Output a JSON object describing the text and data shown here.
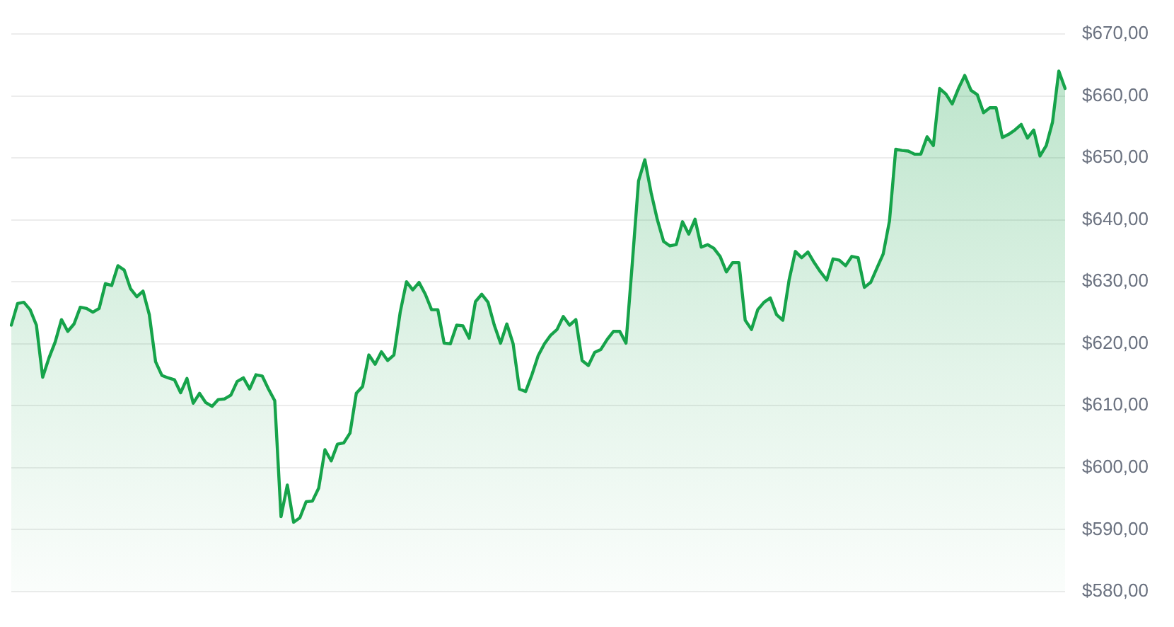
{
  "chart_data": {
    "type": "area",
    "color": "#16a34a",
    "categories": [
      null,
      null,
      null,
      null,
      null,
      null,
      null,
      null,
      null,
      null,
      null,
      null,
      null,
      null,
      null,
      null,
      null,
      null,
      null,
      null,
      null,
      null,
      null,
      null,
      null,
      null,
      null,
      null,
      null,
      null,
      null,
      null,
      null,
      null,
      null,
      null,
      null,
      null,
      null,
      null,
      null,
      null,
      null,
      null,
      null,
      null,
      null,
      null,
      null,
      null,
      null,
      null,
      null,
      null,
      null,
      null,
      null,
      null,
      null,
      null,
      null,
      null,
      null,
      null,
      null,
      null,
      null,
      null,
      null,
      null,
      null,
      null,
      null,
      null,
      null,
      null,
      null,
      null,
      null,
      null,
      null,
      null,
      null,
      null,
      null,
      null,
      null,
      null,
      null,
      null,
      null,
      null,
      null,
      null,
      null,
      null,
      null,
      null,
      null,
      null,
      null,
      null,
      null,
      null,
      null,
      null,
      null,
      null,
      null,
      null,
      null,
      null,
      null,
      null,
      null,
      null,
      null,
      null,
      null,
      null,
      null,
      null,
      null,
      null,
      null,
      null,
      null,
      null,
      null,
      null,
      null,
      null,
      null,
      null,
      null,
      null,
      null,
      null,
      null,
      null,
      null,
      null,
      null,
      null,
      null,
      null,
      null,
      null,
      null,
      null,
      null,
      null,
      null,
      null,
      null,
      null,
      null,
      null,
      null,
      null,
      null,
      null,
      null,
      null,
      null,
      null,
      null,
      null,
      null
    ],
    "values": [
      623.0,
      626.5,
      626.7,
      625.5,
      623.0,
      614.6,
      617.7,
      620.3,
      623.9,
      622.0,
      623.2,
      625.9,
      625.7,
      625.1,
      625.7,
      629.7,
      629.4,
      632.6,
      631.9,
      628.9,
      627.6,
      628.5,
      624.7,
      617.1,
      614.9,
      614.5,
      614.2,
      612.1,
      614.4,
      610.4,
      612.0,
      610.5,
      609.9,
      611.0,
      611.1,
      611.7,
      613.9,
      614.5,
      612.7,
      615.0,
      614.8,
      612.7,
      610.8,
      592.1,
      597.2,
      591.2,
      591.9,
      594.5,
      594.6,
      596.7,
      602.9,
      601.1,
      603.8,
      604.0,
      605.6,
      612.0,
      613.1,
      618.2,
      616.7,
      618.7,
      617.3,
      618.2,
      625.1,
      630.0,
      628.7,
      629.9,
      628.0,
      625.5,
      625.5,
      620.1,
      620.0,
      623.0,
      622.9,
      620.9,
      626.8,
      628.0,
      626.7,
      623.0,
      620.1,
      623.2,
      620.0,
      612.7,
      612.3,
      615.0,
      618.1,
      620.0,
      621.4,
      622.3,
      624.4,
      623.0,
      623.9,
      617.3,
      616.5,
      618.6,
      619.1,
      620.7,
      622.0,
      622.0,
      620.1,
      633.0,
      646.3,
      649.7,
      644.4,
      640.0,
      636.5,
      635.8,
      636.0,
      639.7,
      637.7,
      640.1,
      635.6,
      636.0,
      635.4,
      634.1,
      631.6,
      633.1,
      633.1,
      623.8,
      622.3,
      625.5,
      626.7,
      627.4,
      624.7,
      623.8,
      630.3,
      634.9,
      633.9,
      634.8,
      633.1,
      631.6,
      630.3,
      633.7,
      633.5,
      632.6,
      634.1,
      633.9,
      629.1,
      629.9,
      632.2,
      634.5,
      639.8,
      651.4,
      651.2,
      651.1,
      650.6,
      650.6,
      653.4,
      652.0,
      661.2,
      660.3,
      658.7,
      661.2,
      663.3,
      660.9,
      660.2,
      657.3,
      658.1,
      658.1,
      653.3,
      653.8,
      654.5,
      655.4,
      653.2,
      654.5,
      650.3,
      652.0,
      655.8,
      664.0,
      661.2
    ],
    "ylim": [
      580,
      670
    ],
    "yticks": [
      {
        "value": 580,
        "label": "$580,00"
      },
      {
        "value": 590,
        "label": "$590,00"
      },
      {
        "value": 600,
        "label": "$600,00"
      },
      {
        "value": 610,
        "label": "$610,00"
      },
      {
        "value": 620,
        "label": "$620,00"
      },
      {
        "value": 630,
        "label": "$630,00"
      },
      {
        "value": 640,
        "label": "$640,00"
      },
      {
        "value": 650,
        "label": "$650,00"
      },
      {
        "value": 660,
        "label": "$660,00"
      },
      {
        "value": 670,
        "label": "$670,00"
      }
    ],
    "grid": "y",
    "tick_labels": "y",
    "marker": "none"
  }
}
